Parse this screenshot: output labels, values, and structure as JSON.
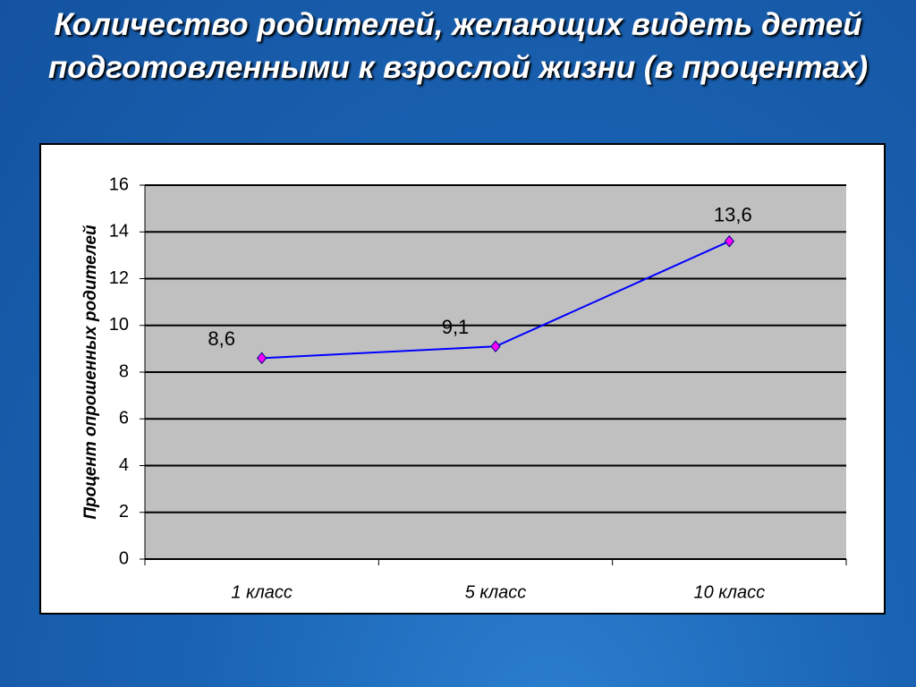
{
  "chart_data": {
    "type": "line",
    "title": "Количество родителей, желающих видеть детей подготовленными к взрослой жизни (в процентах)",
    "y_label": "Процент опрошенных родителей",
    "categories": [
      "1 класс",
      "5 класс",
      "10 класс"
    ],
    "values": [
      8.6,
      9.1,
      13.6
    ],
    "value_labels": [
      "8,6",
      "9,1",
      "13,6"
    ],
    "color": "#0000ff",
    "marker_color": "#ff00ff",
    "ylim": [
      0,
      16
    ],
    "yticks": [
      0,
      2,
      4,
      6,
      8,
      10,
      12,
      14,
      16
    ],
    "grid": true
  }
}
